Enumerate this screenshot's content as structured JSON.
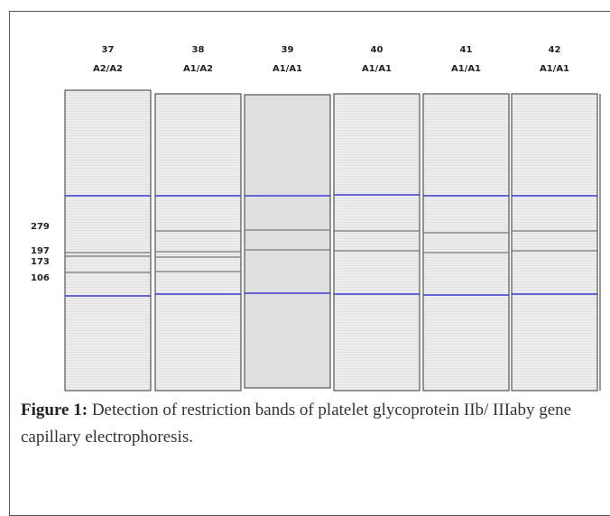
{
  "figure": {
    "lanes": [
      {
        "number": "37",
        "genotype": "A2/A2"
      },
      {
        "number": "38",
        "genotype": "A1/A2"
      },
      {
        "number": "39",
        "genotype": "A1/A1"
      },
      {
        "number": "40",
        "genotype": "A1/A1"
      },
      {
        "number": "41",
        "genotype": "A1/A1"
      },
      {
        "number": "42",
        "genotype": "A1/A1"
      }
    ],
    "size_labels": [
      "279",
      "197",
      "173",
      "106"
    ],
    "caption": {
      "label": "Figure 1:",
      "text": "Detection of restriction bands of platelet glycoprotein IIb/ IIIaby gene capillary electrophoresis."
    }
  }
}
